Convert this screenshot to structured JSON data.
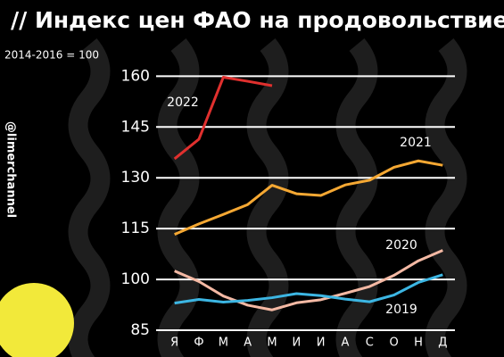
{
  "chart_data": {
    "type": "line",
    "title": "// Индекс цен ФАО на продовольствие",
    "subtitle": "2014-2016 = 100",
    "watermark": "@limerchannel",
    "categories": [
      "Я",
      "Ф",
      "М",
      "А",
      "М",
      "И",
      "И",
      "А",
      "С",
      "О",
      "Н",
      "Д"
    ],
    "series": [
      {
        "name": "2022",
        "color": "#e0302e",
        "values": [
          135.6,
          141.4,
          159.7,
          158.5,
          157.2,
          null,
          null,
          null,
          null,
          null,
          null,
          null
        ]
      },
      {
        "name": "2021",
        "color": "#f5a833",
        "values": [
          113.3,
          116.4,
          119.2,
          122.1,
          127.8,
          125.3,
          124.8,
          127.9,
          129.3,
          133.1,
          135.0,
          133.7
        ]
      },
      {
        "name": "2020",
        "color": "#f4b9a4",
        "values": [
          102.5,
          99.4,
          95.1,
          92.4,
          91.0,
          93.1,
          94.0,
          95.9,
          97.9,
          101.2,
          105.5,
          108.6
        ]
      },
      {
        "name": "2019",
        "color": "#3cb6e3",
        "values": [
          93.0,
          94.1,
          93.3,
          93.8,
          94.6,
          95.8,
          95.2,
          94.2,
          93.4,
          95.4,
          99.1,
          101.4
        ]
      }
    ],
    "ylim": [
      85,
      163
    ],
    "yticks": [
      85,
      100,
      115,
      130,
      145,
      160
    ],
    "grid": true
  }
}
